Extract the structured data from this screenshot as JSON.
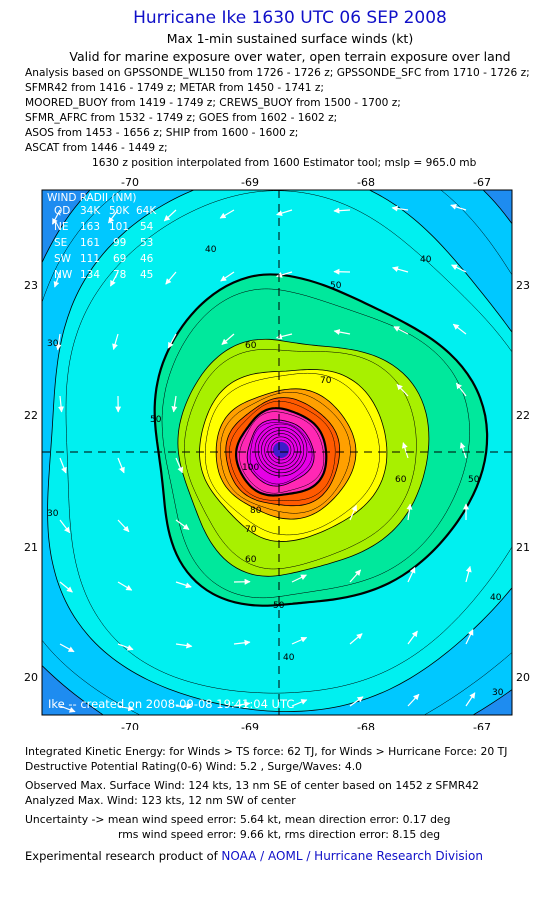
{
  "header": {
    "title": "Hurricane Ike 1630 UTC 06 SEP 2008",
    "subtitle1": "Max 1-min sustained surface winds (kt)",
    "subtitle2": "Valid for marine exposure over water, open terrain exposure over land",
    "analysis_lines": [
      "Analysis based on  GPSSONDE_WL150 from 1726 - 1726 z;  GPSSONDE_SFC from 1710 - 1726 z;",
      "SFMR42 from 1416 - 1749 z;  METAR from 1450 - 1741 z;",
      "MOORED_BUOY from 1419 - 1749 z;  CREWS_BUOY from 1500 - 1700 z;",
      "SFMR_AFRC from 1532 - 1749 z;  GOES from 1602 - 1602 z;",
      "ASOS from 1453 - 1656 z;  SHIP from 1600 - 1600 z;",
      "ASCAT from 1446 - 1449 z;"
    ],
    "position_note": "1630 z position interpolated from 1600 Estimator tool; mslp = 965.0 mb"
  },
  "map": {
    "lon_ticks": [
      "-70",
      "-69",
      "-68",
      "-67"
    ],
    "lat_ticks": [
      "23",
      "22",
      "21",
      "20"
    ],
    "center": {
      "lon": -68.76,
      "lat": 21.74
    },
    "lon_range": [
      -70.58,
      -66.88
    ],
    "lat_range": [
      19.6,
      24.05
    ],
    "wind_radii": {
      "title": "WIND RADII (NM)",
      "header": [
        "QD",
        "34K",
        "50K",
        "64K"
      ],
      "rows": [
        [
          "NE",
          "163",
          "101",
          "54"
        ],
        [
          "SE",
          "161",
          "99",
          "53"
        ],
        [
          "SW",
          "111",
          "69",
          "46"
        ],
        [
          "NW",
          "134",
          "78",
          "45"
        ]
      ]
    },
    "contour_levels": [
      {
        "level": 30,
        "color": "#00c8ff",
        "label": "30"
      },
      {
        "level": 40,
        "color": "#00f0f0",
        "label": "40"
      },
      {
        "level": 50,
        "color": "#00e89c",
        "label": "50"
      },
      {
        "level": 60,
        "color": "#a8f000",
        "label": "60"
      },
      {
        "level": 70,
        "color": "#ffff00",
        "label": "70"
      },
      {
        "level": 80,
        "color": "#ffa000",
        "label": "80"
      },
      {
        "level": 90,
        "color": "#ff5a00",
        "label": "90"
      },
      {
        "level": 100,
        "color": "#ff28b4",
        "label": "100"
      },
      {
        "level": 110,
        "color": "#e600e6",
        "label": "110"
      }
    ],
    "outer_color": "#1e8cf0",
    "eye_color": "#3c1ec8",
    "credit": "Ike -- created on 2008-09-08 19:41:04 UTC"
  },
  "footer": {
    "lines": [
      "Integrated Kinetic Energy:  for Winds > TS force: 62 TJ,  for Winds > Hurricane Force: 20 TJ",
      "Destructive Potential Rating(0-6)   Wind: 5.2 , Surge/Waves: 4.0",
      "Observed Max. Surface Wind: 124 kts, 13 nm SE of center based on 1452 z SFMR42",
      "Analyzed Max. Wind: 123 kts, 12 nm SW of center",
      "Uncertainty -> mean wind speed error: 5.64 kt,   mean direction error: 0.17 deg",
      "rms wind speed error: 9.66 kt,   rms direction error: 8.15 deg"
    ],
    "product_prefix": "Experimental research product of ",
    "product_org": "NOAA / AOML / Hurricane Research Division"
  }
}
